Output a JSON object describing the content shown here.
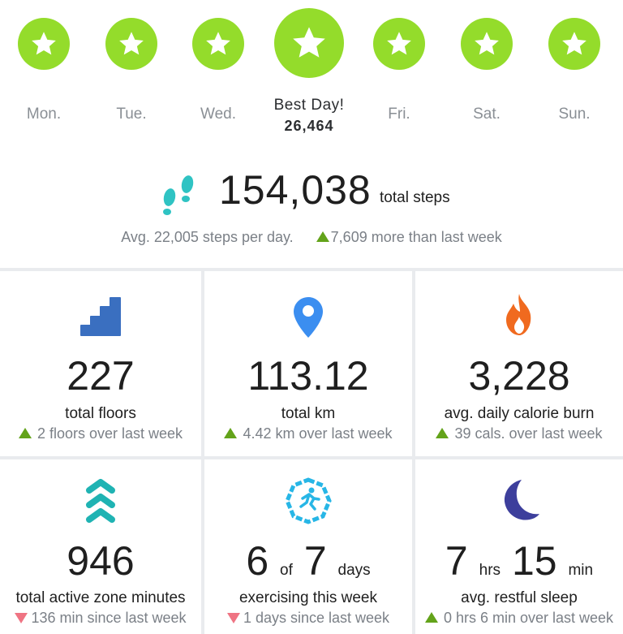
{
  "week": {
    "days": [
      {
        "label": "Mon."
      },
      {
        "label": "Tue."
      },
      {
        "label": "Wed."
      },
      {
        "label": "Best Day!",
        "value": "26,464"
      },
      {
        "label": "Fri."
      },
      {
        "label": "Sat."
      },
      {
        "label": "Sun."
      }
    ],
    "star_color": "#94dc2b",
    "icon": "star-icon"
  },
  "steps": {
    "total": "154,038",
    "unit": "total steps",
    "avg_text": "Avg. 22,005 steps per day.",
    "comparison": "7,609 more than last week",
    "icon": "footprints-icon"
  },
  "tiles": {
    "floors": {
      "value": "227",
      "label": "total floors",
      "delta": "2 floors over last week",
      "trend": "up",
      "icon": "stairs-icon"
    },
    "distance": {
      "value": "113.12",
      "label": "total km",
      "delta": "4.42 km over last week",
      "trend": "up",
      "icon": "map-pin-icon"
    },
    "calories": {
      "value": "3,228",
      "label": "avg. daily calorie burn",
      "delta": "39 cals. over last week",
      "trend": "up",
      "icon": "flame-icon"
    },
    "azm": {
      "value": "946",
      "label": "total active zone minutes",
      "delta": "136 min since last week",
      "trend": "down",
      "icon": "chevrons-up-icon"
    },
    "exercise": {
      "value": "6",
      "of": "of",
      "total": "7",
      "unit": "days",
      "label": "exercising this week",
      "delta": "1 days since last week",
      "trend": "down",
      "icon": "runner-icon"
    },
    "sleep": {
      "hours": "7",
      "hours_unit": "hrs",
      "minutes": "15",
      "minutes_unit": "min",
      "label": "avg. restful sleep",
      "delta": "0 hrs 6 min over last week",
      "trend": "up",
      "icon": "moon-icon"
    }
  },
  "colors": {
    "up": "#63a31a",
    "down": "#ef7483",
    "accent": "#94dc2b"
  }
}
